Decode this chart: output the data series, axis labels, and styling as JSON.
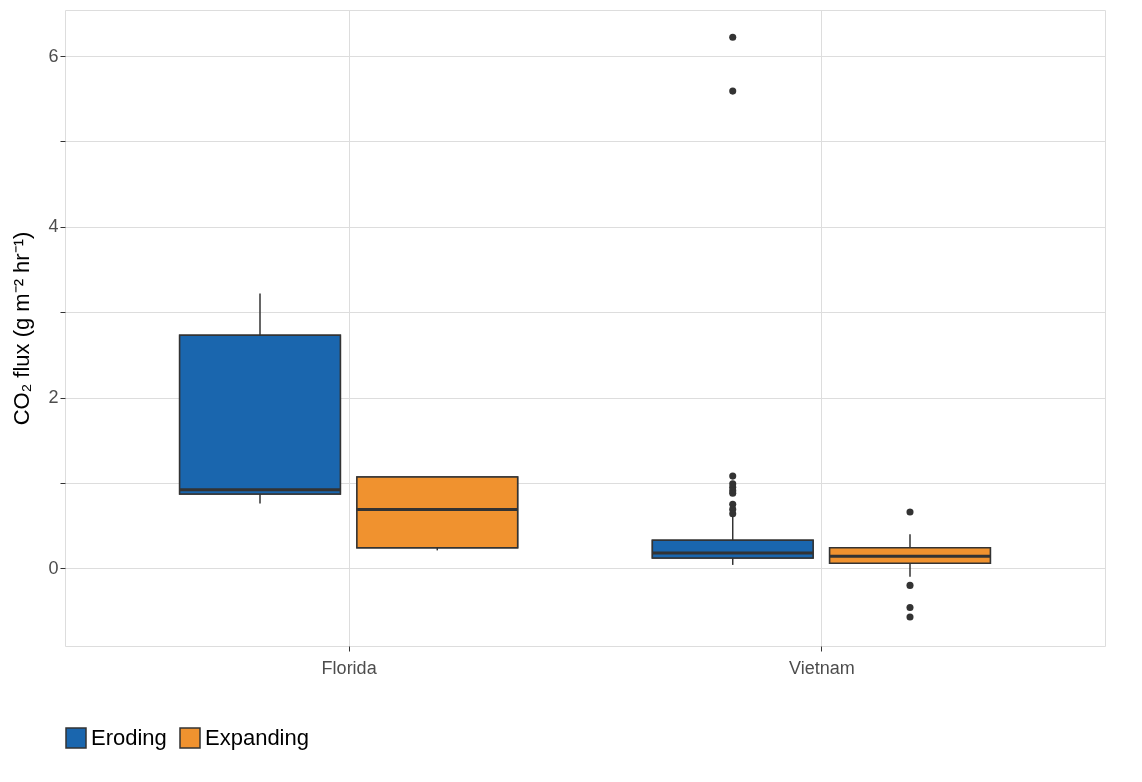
{
  "chart_data": {
    "type": "box",
    "ylabel": "CO₂ flux (g m⁻² hr⁻¹)",
    "categories": [
      "Florida",
      "Vietnam"
    ],
    "ylim": [
      -0.91,
      6.54
    ],
    "yticks": [
      0,
      {
        "value": 1,
        "label": null
      },
      2,
      {
        "value": 3,
        "label": null
      },
      4,
      {
        "value": 5,
        "label": null
      },
      6
    ],
    "grid": true,
    "legend": "bottom",
    "series": [
      {
        "name": "Eroding",
        "color": "#1a66ae",
        "boxes": [
          {
            "low": 0.76,
            "q1": 0.87,
            "median": 0.92,
            "q3": 2.73,
            "high": 3.22
          },
          {
            "low": 0.04,
            "q1": 0.12,
            "median": 0.18,
            "q3": 0.33,
            "high": 0.62,
            "outliers": [
              6.22,
              5.59,
              1.08,
              0.99,
              0.95,
              0.91,
              0.88,
              0.75,
              0.69,
              0.64
            ]
          }
        ]
      },
      {
        "name": "Expanding",
        "color": "#f0922f",
        "boxes": [
          {
            "low": 0.21,
            "q1": 0.24,
            "median": 0.69,
            "q3": 1.07,
            "high": 1.07
          },
          {
            "low": -0.1,
            "q1": 0.06,
            "median": 0.14,
            "q3": 0.24,
            "high": 0.4,
            "outliers": [
              0.66,
              -0.2,
              -0.46,
              -0.57
            ]
          }
        ]
      }
    ]
  }
}
